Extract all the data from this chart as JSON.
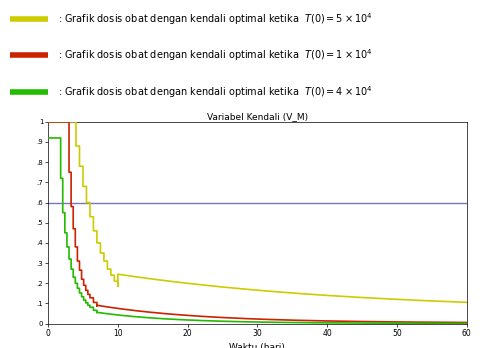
{
  "title": "Variabel Kendali (V_M)",
  "xlabel": "Waktu (hari)",
  "xlim": [
    0,
    60
  ],
  "ylim": [
    0,
    1.0
  ],
  "hline_y": 0.6,
  "hline_color": "#7777bb",
  "colors": {
    "yellow": "#cccc00",
    "red": "#cc2200",
    "green": "#22bb00"
  },
  "legend_labels": [
    ": Grafik dosis obat dengan kendali optimal ketika  T(0) = 5×10⁴",
    ": Grafik dosis obat dengan kendali optimal ketika  T(0) = 1×10⁴",
    ": Grafik dosis obat dengan kendali optimal ketika  T(0) = 4×10⁴"
  ],
  "legend_colors": [
    "#cccc00",
    "#cc2200",
    "#22bb00"
  ],
  "fig_width": 4.81,
  "fig_height": 3.48,
  "dpi": 100
}
